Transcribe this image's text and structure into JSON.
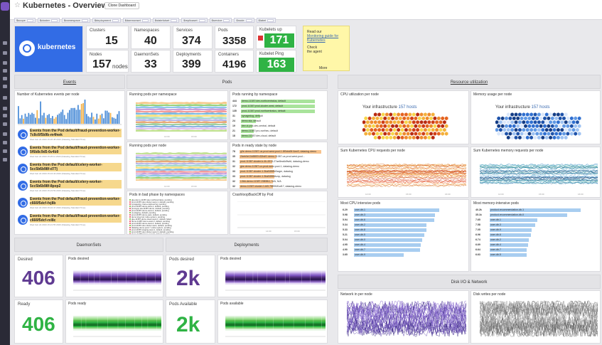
{
  "header": {
    "title": "Kubernetes - Overview",
    "clone_label": "Clone Dashboard"
  },
  "filters": [
    "$scope",
    "$cluster",
    "$namespace",
    "$deployment",
    "$daemonset",
    "$statefulset",
    "$replicaset",
    "$service",
    "$node",
    "$label"
  ],
  "summary": {
    "brand": "kubernetes",
    "clusters": {
      "label": "Clusters",
      "value": "15"
    },
    "nodes": {
      "label": "Nodes",
      "value": "157",
      "unit": "nodes"
    },
    "namespaces": {
      "label": "Namespaces",
      "value": "40"
    },
    "daemonsets": {
      "label": "DaemonSets",
      "value": "33"
    },
    "services": {
      "label": "Services",
      "value": "374"
    },
    "deployments": {
      "label": "Deployments",
      "value": "399"
    },
    "pods": {
      "label": "Pods",
      "value": "3358"
    },
    "containers": {
      "label": "Containers",
      "value": "4196"
    },
    "kubelets_up": {
      "label": "Kubelets up",
      "value": "171"
    },
    "kubelet_ping": {
      "label": "Kubelet Ping",
      "value": "163"
    },
    "note": {
      "line1": "Read our",
      "link": "Monitoring guide for Kubernetes",
      "line2": "Check",
      "line3": "the agent",
      "more": "More"
    }
  },
  "sections": {
    "events": "Events",
    "pods": "Pods",
    "resource": "Resource utilization",
    "daemonsets": "DaemonSets",
    "deployments": "Deployments",
    "disk": "Disk I/O & Network"
  },
  "events": {
    "chart_title": "Number of Kubernetes events per node",
    "items": [
      {
        "title": "Events from the Pod default/fraud-prevention-worker-7c8c6f5b9b-m4hwk",
        "sub": "Wed Feb 22 2023 15:26:48 2023 (Datadog Standard Time)"
      },
      {
        "title": "Events from the Pod default/fraud-prevention-worker-5f6b8c9d5-6v4b9",
        "sub": "Wed Feb 22 2023 15:25:11 2023 (Datadog Standard Time)"
      },
      {
        "title": "Events from the Pod default/celery-worker-5cc5b6b98f-d77j",
        "sub": "Wed Feb 22 2023 15:24:43 2023 (Datadog Standard Time)"
      },
      {
        "title": "Events from the Pod default/celery-worker-5cc5b6b98f-8pxp2",
        "sub": "Wed Feb 22 2023 15:23:59 2023 (Datadog Standard Time)"
      },
      {
        "title": "Events from the Pod default/fraud-prevention-worker-c666f5dcf-fxj8b",
        "sub": "Wed Feb 22 2023 15:22:47 2023 (Datadog Standard Time)"
      },
      {
        "title": "Events from the Pod default/fraud-prevention-worker-c666f5dcf-rxl8c",
        "sub": "Wed Feb 22 2023 15:21:55 2023 (Datadog Standard Time)"
      }
    ]
  },
  "pods": {
    "running_ns": "Running pods per namespace",
    "running_by_ns": "Pods running by namespace",
    "running_node": "Running pods per node",
    "ready_state": "Pods in ready state by node",
    "bad_phase": "Pods in bad phase by namespaces",
    "crashloop": "CrashloopBackOff by Pod",
    "running_by_ns_rows": [
      {
        "v": "444",
        "n": "demo-11387:dev-northcentralus, default"
      },
      {
        "v": "172",
        "n": "prod-11387:prod-cluster-west, default"
      },
      {
        "v": "135",
        "n": "prod-11387:prod-northcentralus, default"
      },
      {
        "v": "31",
        "n": "synagedog, default"
      },
      {
        "v": "24",
        "n": "demo:sta, default"
      },
      {
        "v": "19",
        "n": "dev-ci-pod-dev-central, default"
      },
      {
        "v": "21",
        "n": "demo-11387:pro-northeu, default"
      },
      {
        "v": "18",
        "n": "demo-11387:dev-cloud, default"
      },
      {
        "v": "17",
        "n": "prod:gcp:prod-cluster-west, default"
      },
      {
        "v": "14",
        "n": "prod-11387:prod, default"
      },
      {
        "v": "12",
        "n": "demo-11387:prod-east, kube-system"
      },
      {
        "v": "11",
        "n": "prod-11387:prod-central, kube-system"
      }
    ],
    "ready_rows": [
      {
        "v": "78",
        "n": "g0e-demo-11387-ux-prod-west-pool-1-8f0cbd5f-6zw3, datadog-demo"
      },
      {
        "v": "35",
        "n": "Zdeb0e10d5857n32bdf1 demo-11387-ux-prod-west-pool..."
      },
      {
        "v": "31",
        "n": "prod-11387-cluster-k-4h-4913-27ae8ea6d9wfd, datadog-demo"
      },
      {
        "v": "32",
        "n": "gke-demo-11387-ux-prod-west-pool-1, datadog-demo"
      },
      {
        "v": "33",
        "n": "prod-11387-cluster-1-3ba94f6ffd3wgm, datadog"
      },
      {
        "v": "33",
        "n": "prod-11387-cluster-1-3ba94f6fdkvxp, datadog"
      },
      {
        "v": "32",
        "n": "i-0bb-demo-11387-2989fb1, N/A, N/A"
      },
      {
        "v": "32",
        "n": "demo-11387-cluster-1-bf0-7f8f9f4f1af17, datadog-demo"
      },
      {
        "v": "31",
        "n": "demo-11387-cluster-1-bf0-f48f49f1fd3, datadog-demo"
      },
      {
        "v": "31",
        "n": "i-0b9-demo-11387-1b71, N/A"
      },
      {
        "v": "30",
        "n": "demo-11387-cluster-1-7f4b2c1d, N/A"
      },
      {
        "v": "28",
        "n": "prod-11387-n2-pool-3, N/A"
      }
    ],
    "bad_rows": [
      "gke-demo-11387-dev-northcentralus, pending",
      "prod-11387-dev-cluster-west-1, default, pending",
      "synagedog, trace-engineering, pending",
      "prod-11387-demo-west-1, default, pending",
      "prod-gcp:sta-11387-demo, default, pending",
      "prod-11387-demo-west-2, default, pending",
      "us-staging, default, pending",
      "prod-11387-demo-east, default, pending",
      "demo:sta-prod, kube-system, pending",
      "gke-11387-demo-clean-west-1, default, failed",
      "demo-11387-demo-west-3, default, pending",
      "prod-11387-demo-west-4, default, pending",
      "prod-11387-dev-cluster-west, default, pending",
      "datadog-demo-pool-7, kube-system, pending",
      "prod-11387-staging-west-1, default, pending",
      "prod-11387-dev-cluster-west-3, default, pending",
      "demo-11387-demo-west-5, default, pending"
    ]
  },
  "resource": {
    "cpu_util": "CPU utilization per node",
    "mem_util": "Memory usage per node",
    "infra_label": "Your infrastructure",
    "hosts": "157 hosts",
    "cpu_req": "Sum Kubernetes CPU requests per node",
    "mem_req": "Sum Kubernetes memory requests per node",
    "cpu_pods": "Most CPU intensive pods",
    "mem_pods": "Most memory-intensive pods",
    "cpu_rows": [
      {
        "v": "6.29",
        "n": "user-db-1"
      },
      {
        "v": "5.98",
        "n": "user-db-3"
      },
      {
        "v": "5.94",
        "n": "user-db-6"
      },
      {
        "v": "5.34",
        "n": "user-db-2"
      },
      {
        "v": "5.33",
        "n": "user-db-8"
      },
      {
        "v": "5.21",
        "n": "user-db-5"
      },
      {
        "v": "5.04",
        "n": "user-db-0"
      },
      {
        "v": "4.95",
        "n": "user-db-4"
      },
      {
        "v": "4.90",
        "n": "user-db-7"
      },
      {
        "v": "3.65",
        "n": "user-db-9"
      }
    ],
    "mem_rows": [
      {
        "v": "40.2k",
        "n": "product-recommendation-db-1"
      },
      {
        "v": "35.1k",
        "n": "product-recommendation-db-0"
      },
      {
        "v": "7.65",
        "n": "user-db-1"
      },
      {
        "v": "7.58",
        "n": "user-db-3"
      },
      {
        "v": "7.05",
        "n": "user-db-9"
      },
      {
        "v": "6.96",
        "n": "user-db-6"
      },
      {
        "v": "6.74",
        "n": "user-db-2"
      },
      {
        "v": "6.69",
        "n": "user-db-4"
      },
      {
        "v": "6.64",
        "n": "user-db-7"
      },
      {
        "v": "6.63",
        "n": "user-db-5"
      }
    ]
  },
  "daemonsets": {
    "desired": {
      "label": "Desired",
      "value": "406"
    },
    "pods_desired": "Pods desired",
    "ready": {
      "label": "Ready",
      "value": "406"
    },
    "pods_ready": "Pods ready"
  },
  "deployments": {
    "pods_desired": {
      "label": "Pods desired",
      "value": "2k"
    },
    "pods_desired_chart": "Pods desired",
    "pods_available": {
      "label": "Pods Available",
      "value": "2k"
    },
    "pods_available_chart": "Pods available"
  },
  "disk": {
    "net_in": "Network in per node",
    "disk_writes": "Disk writes per node"
  },
  "ticks": {
    "t1": "14:00",
    "t2": "15:00",
    "t3": "16:00"
  },
  "colors": {
    "purple": "#5f3a91",
    "green": "#2fb344",
    "k8s": "#326ce5",
    "note": "#fff7a8"
  }
}
